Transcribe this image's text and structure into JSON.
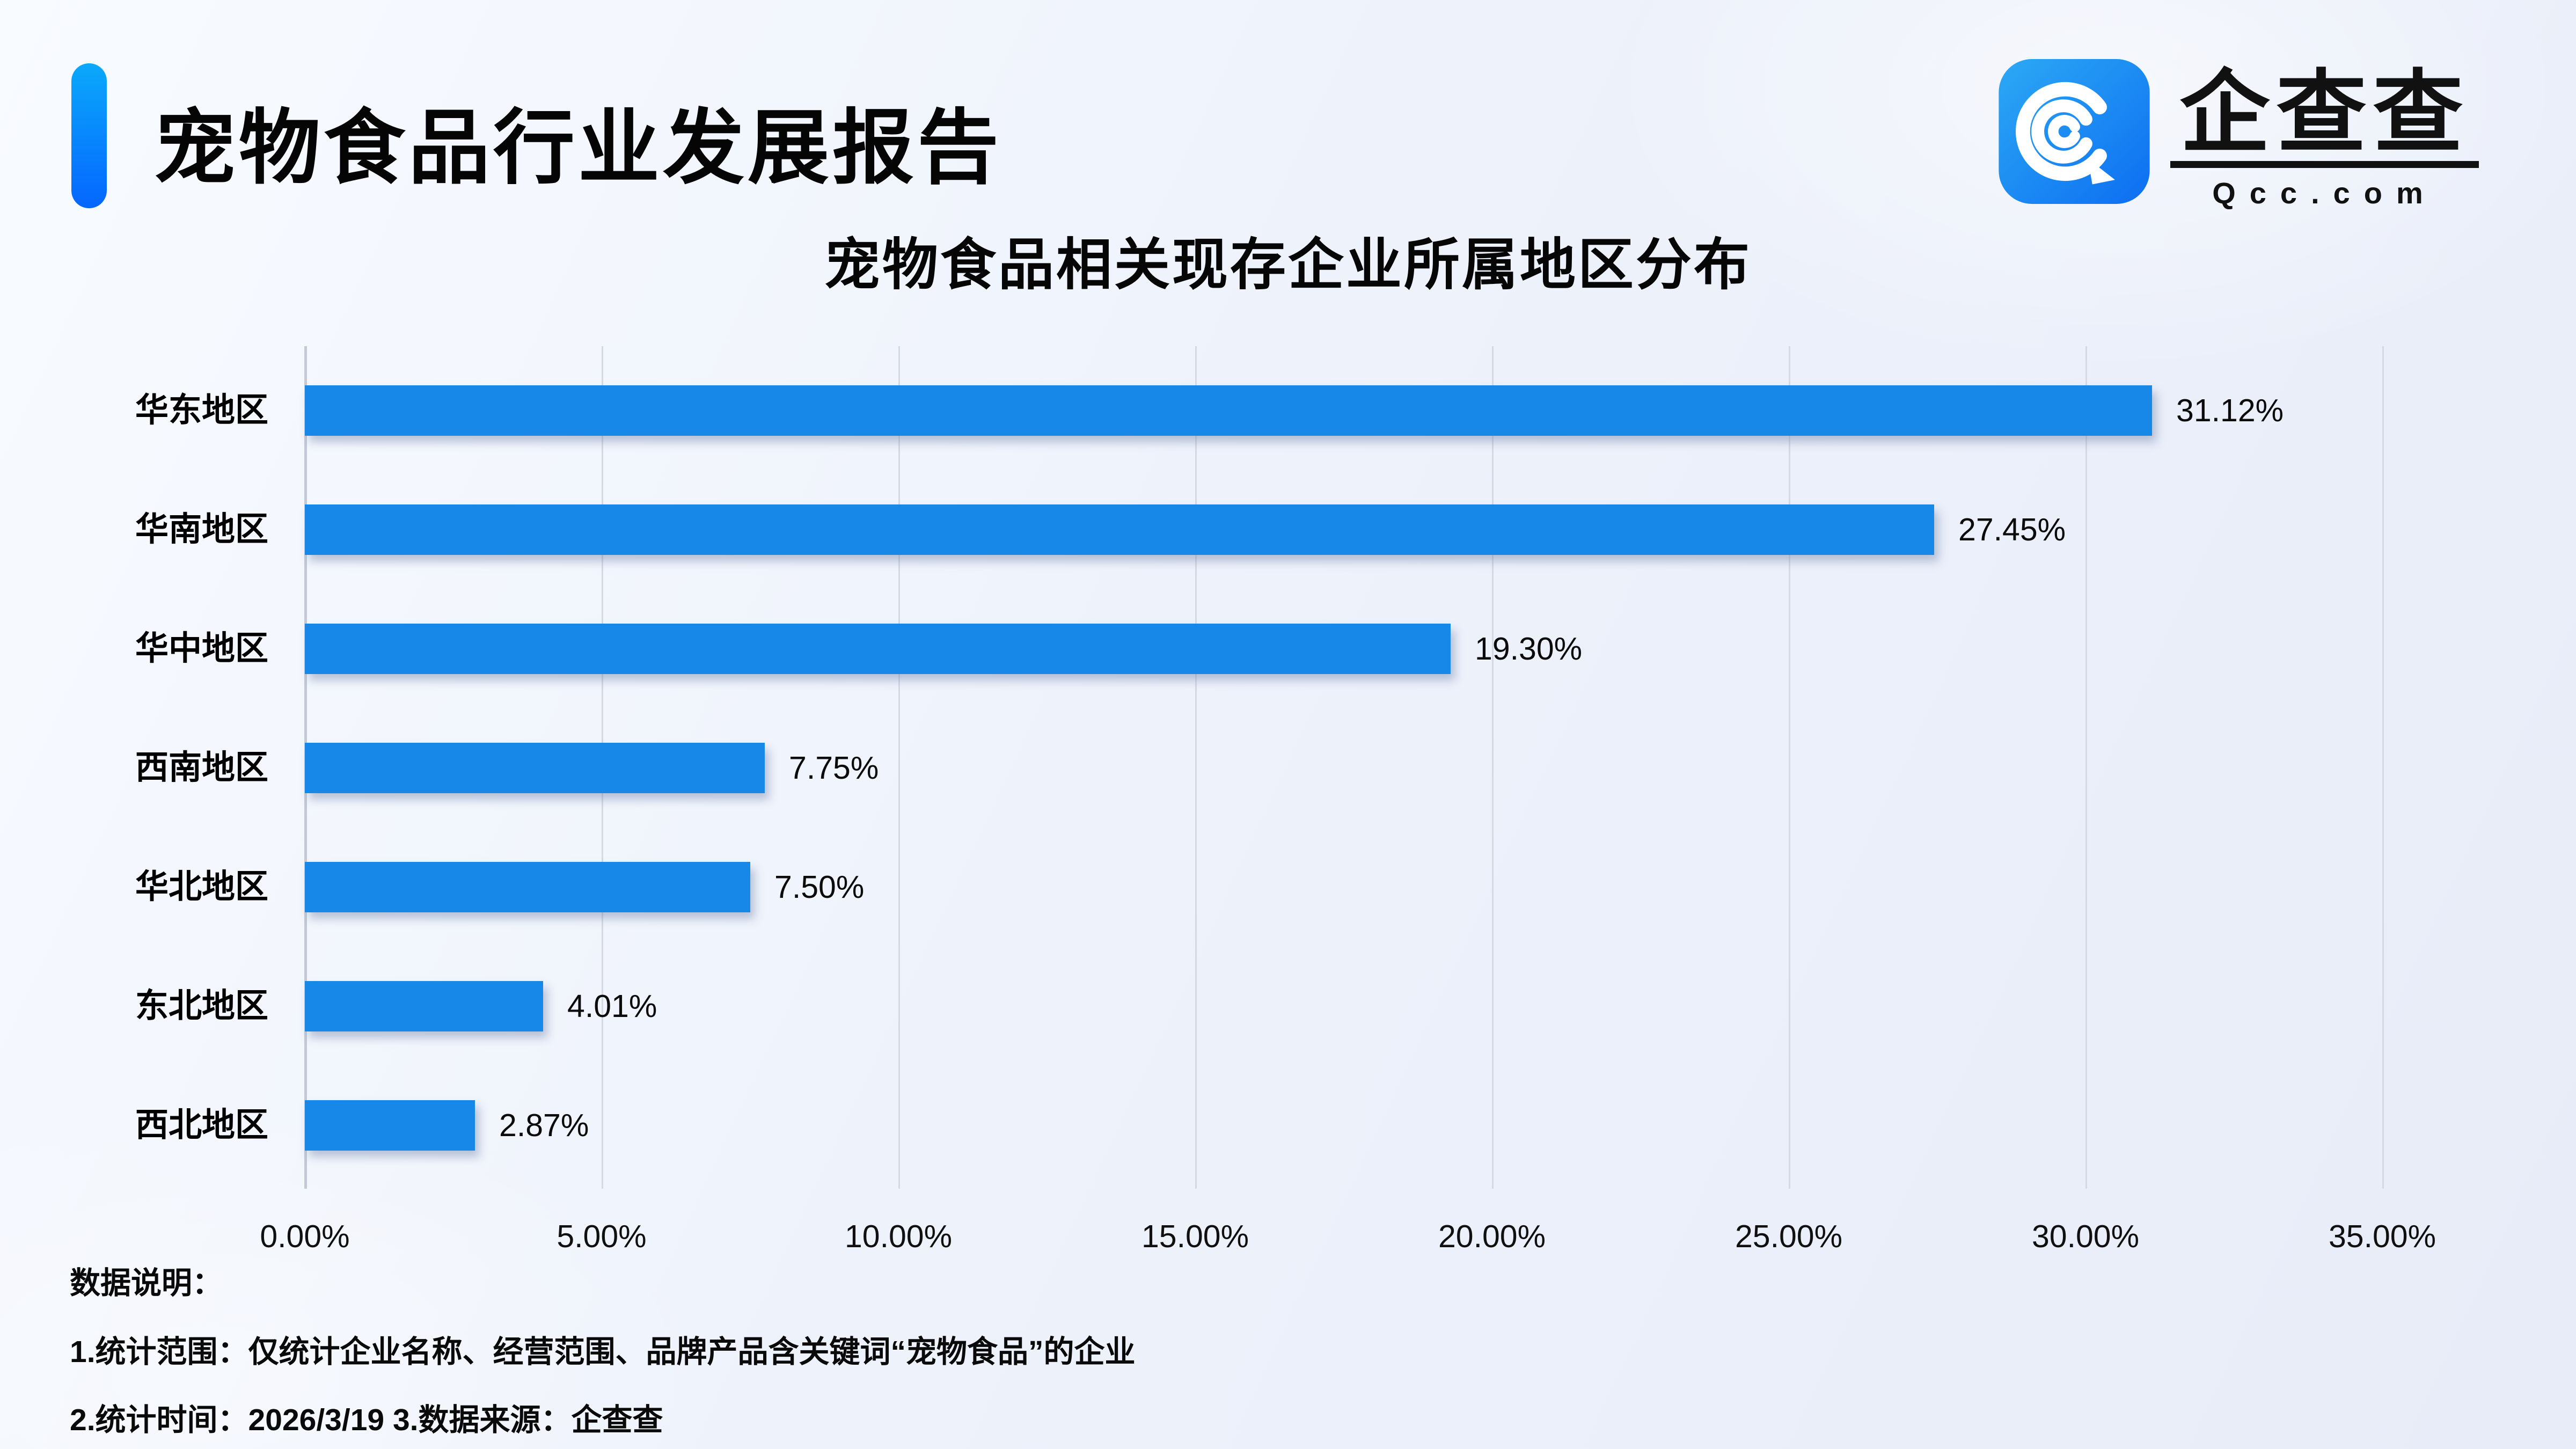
{
  "page": {
    "title": "宠物食品行业发展报告",
    "logo": {
      "icon": "qcc-logo-icon",
      "name_cn": "企查查",
      "domain": "Qcc.com",
      "icon_gradient_start": "#2CA9F4",
      "icon_gradient_end": "#0D6EF2"
    },
    "footer": {
      "heading": "数据说明：",
      "note1": "1.统计范围：仅统计企业名称、经营范围、品牌产品含关键词“宠物食品”的企业",
      "note2": "2.统计时间：2026/3/19  3.数据来源：企查查"
    }
  },
  "chart_data": {
    "type": "bar",
    "orientation": "horizontal",
    "title": "宠物食品相关现存企业所属地区分布",
    "categories": [
      "华东地区",
      "华南地区",
      "华中地区",
      "西南地区",
      "华北地区",
      "东北地区",
      "西北地区"
    ],
    "values": [
      31.12,
      27.45,
      19.3,
      7.75,
      7.5,
      4.01,
      2.87
    ],
    "value_labels": [
      "31.12%",
      "27.45%",
      "19.30%",
      "7.75%",
      "7.50%",
      "4.01%",
      "2.87%"
    ],
    "x_ticks": [
      "0.00%",
      "5.00%",
      "10.00%",
      "15.00%",
      "20.00%",
      "25.00%",
      "30.00%",
      "35.00%"
    ],
    "xlabel": "",
    "ylabel": "",
    "xlim": [
      0,
      35
    ],
    "grid": true,
    "legend": "none",
    "bar_color": "#1787E8",
    "accent_gradient": [
      "#0BA9FB",
      "#0566FE"
    ]
  }
}
